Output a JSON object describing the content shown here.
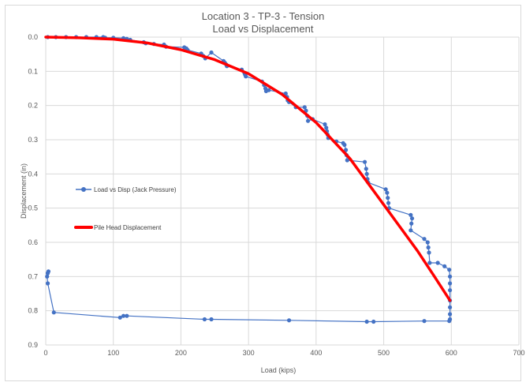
{
  "chart_data": {
    "type": "scatter",
    "title": "Location 3 - TP-3 - Tension",
    "subtitle": "Load vs Displacement",
    "xlabel": "Load (kips)",
    "ylabel": "Displacement (in)",
    "xlim": [
      0,
      700
    ],
    "ylim": [
      0,
      0.9
    ],
    "y_inverted": true,
    "grid": true,
    "x_ticks": [
      "0",
      "100",
      "200",
      "300",
      "400",
      "500",
      "600",
      "700"
    ],
    "y_ticks": [
      "0.0",
      "0.1",
      "0.2",
      "0.3",
      "0.4",
      "0.5",
      "0.6",
      "0.7",
      "0.8",
      "0.9"
    ],
    "legend_placement": "left",
    "series": [
      {
        "name": "Load vs Disp (Jack Pressure)",
        "color": "#4472c4",
        "style": "line-with-markers",
        "x": [
          3,
          15,
          30,
          45,
          60,
          75,
          85,
          88,
          100,
          115,
          120,
          125,
          145,
          148,
          160,
          175,
          178,
          205,
          208,
          210,
          230,
          233,
          236,
          245,
          263,
          265,
          267,
          268,
          290,
          294,
          295,
          296,
          320,
          323,
          325,
          326,
          330,
          355,
          357,
          358,
          360,
          370,
          383,
          385,
          387,
          388,
          395,
          413,
          415,
          416,
          417,
          418,
          430,
          440,
          442,
          444,
          445,
          446,
          472,
          474,
          475,
          476,
          477,
          503,
          505,
          506,
          507,
          508,
          540,
          542,
          541,
          540,
          560,
          565,
          566,
          567,
          568,
          580,
          590,
          597,
          598,
          598,
          598,
          598,
          598,
          598,
          598,
          597,
          560,
          485,
          475,
          360,
          245,
          235,
          120,
          115,
          110,
          12,
          3,
          2,
          3,
          4,
          3
        ],
        "y": [
          0.0,
          0.0,
          0.0,
          0.0,
          0.0,
          0.0,
          0.0,
          0.002,
          0.002,
          0.003,
          0.005,
          0.008,
          0.015,
          0.018,
          0.02,
          0.022,
          0.028,
          0.03,
          0.033,
          0.038,
          0.048,
          0.055,
          0.062,
          0.045,
          0.07,
          0.075,
          0.08,
          0.085,
          0.095,
          0.105,
          0.11,
          0.115,
          0.13,
          0.14,
          0.15,
          0.158,
          0.155,
          0.165,
          0.175,
          0.185,
          0.19,
          0.205,
          0.205,
          0.215,
          0.23,
          0.245,
          0.24,
          0.255,
          0.265,
          0.275,
          0.285,
          0.295,
          0.305,
          0.31,
          0.315,
          0.33,
          0.345,
          0.36,
          0.365,
          0.385,
          0.4,
          0.415,
          0.425,
          0.445,
          0.455,
          0.47,
          0.485,
          0.5,
          0.52,
          0.53,
          0.545,
          0.565,
          0.59,
          0.6,
          0.615,
          0.63,
          0.66,
          0.66,
          0.67,
          0.68,
          0.7,
          0.72,
          0.74,
          0.77,
          0.79,
          0.81,
          0.825,
          0.83,
          0.83,
          0.832,
          0.832,
          0.828,
          0.825,
          0.825,
          0.815,
          0.815,
          0.82,
          0.805,
          0.72,
          0.7,
          0.69,
          0.685,
          0.69
        ]
      },
      {
        "name": "Pile Head Displacement",
        "color": "#ff0000",
        "style": "line",
        "x": [
          0,
          50,
          100,
          150,
          200,
          250,
          300,
          350,
          400,
          450,
          500,
          550,
          575,
          598
        ],
        "y": [
          0.0,
          0.002,
          0.006,
          0.017,
          0.037,
          0.066,
          0.107,
          0.168,
          0.25,
          0.355,
          0.49,
          0.625,
          0.7,
          0.77
        ]
      }
    ]
  }
}
